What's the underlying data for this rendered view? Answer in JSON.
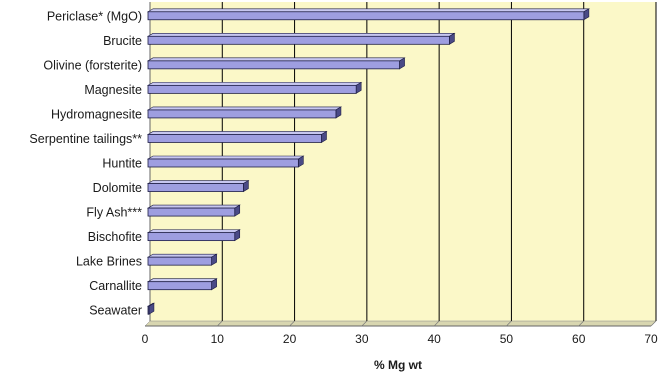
{
  "chart_data": {
    "type": "bar",
    "orientation": "horizontal",
    "categories": [
      "Periclase* (MgO)",
      "Brucite",
      "Olivine (forsterite)",
      "Magnesite",
      "Hydromagnesite",
      "Serpentine tailings**",
      "Huntite",
      "Dolomite",
      "Fly Ash***",
      "Bischofite",
      "Lake Brines",
      "Carnallite",
      "Seawater"
    ],
    "values": [
      60.3,
      41.7,
      34.8,
      28.8,
      26.0,
      24.0,
      20.8,
      13.2,
      12.0,
      12.0,
      8.8,
      8.8,
      0.13
    ],
    "xlabel": "% Mg wt",
    "ylabel": "",
    "xlim": [
      0,
      70
    ],
    "xticks": [
      "0",
      "10",
      "20",
      "30",
      "40",
      "50",
      "60",
      "70"
    ],
    "grid": "vertical",
    "colors": {
      "plot_background": "#fbf8c8",
      "bar_fill": "#9e9ee0",
      "bar_top": "#c7c7f0",
      "bar_side": "#4a4a86",
      "bar_stroke": "#1e1e46",
      "gridline": "#000000"
    }
  }
}
